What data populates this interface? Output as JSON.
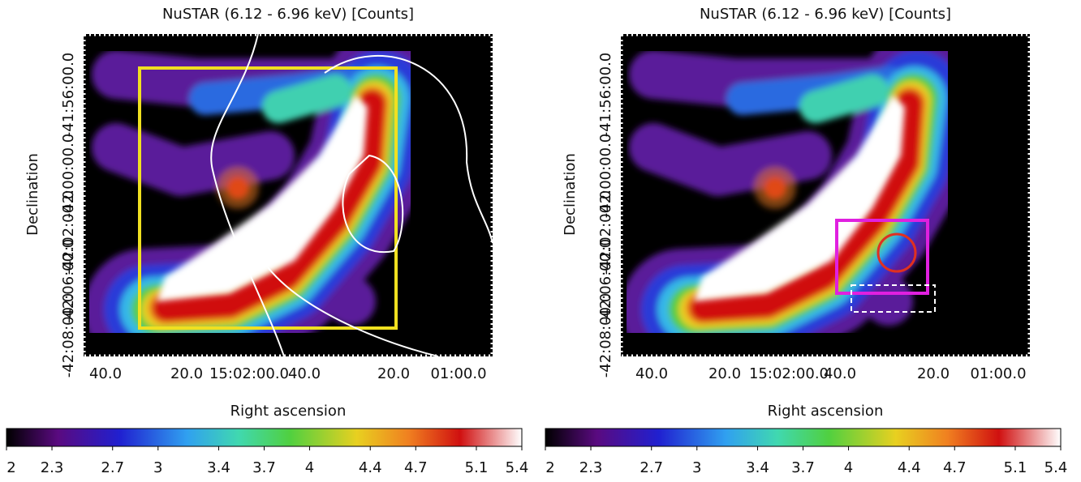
{
  "panels": [
    {
      "title": "NuSTAR (6.12 - 6.96 keV) [Counts]",
      "x_label": "Right ascension",
      "y_label": "Declination",
      "ra_ticks": [
        "40.0",
        "20.0",
        "15:02:00.0",
        "40.0",
        "20.0",
        "01:00.0"
      ],
      "dec_ticks": [
        "-41:56:00.0",
        "-42:00:00.0",
        "-42:02:00.0",
        "-42:06:00.0",
        "-42:08:00.0"
      ]
    },
    {
      "title": "NuSTAR (6.12 - 6.96 keV) [Counts]",
      "x_label": "Right ascension",
      "y_label": "Declination",
      "ra_ticks": [
        "40.0",
        "20.0",
        "15:02:00.0",
        "40.0",
        "20.0",
        "01:00.0"
      ],
      "dec_ticks": [
        "-41:56:00.0",
        "-42:00:00.0",
        "-42:02:00.0",
        "-42:06:00.0",
        "-42:08:00.0"
      ]
    }
  ],
  "colorbars": [
    {
      "lim": [
        2,
        5.4
      ],
      "ticks": [
        2,
        2.3,
        2.7,
        3,
        3.4,
        3.7,
        4,
        4.4,
        4.7,
        5.1,
        5.4
      ]
    },
    {
      "lim": [
        2,
        5.4
      ],
      "ticks": [
        2,
        2.3,
        2.7,
        3,
        3.4,
        3.7,
        4,
        4.4,
        4.7,
        5.1,
        5.4
      ]
    }
  ]
}
